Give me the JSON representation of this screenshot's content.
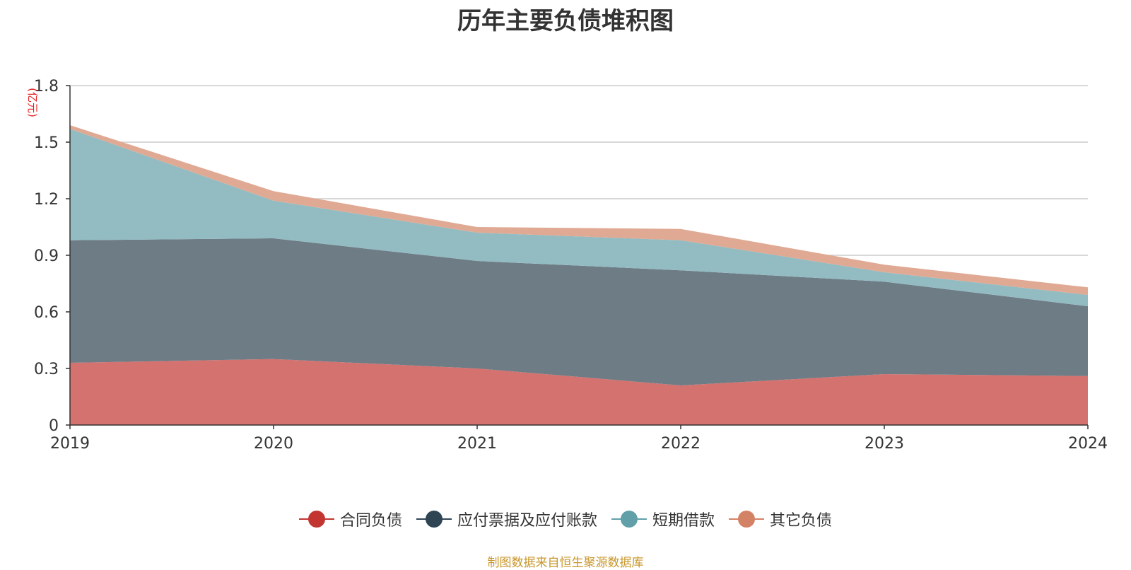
{
  "chart_data": {
    "type": "area",
    "stacked": true,
    "title": "历年主要负债堆积图",
    "unit": "(亿元)",
    "x": [
      "2019",
      "2020",
      "2021",
      "2022",
      "2023",
      "2024"
    ],
    "ylim": [
      0,
      1.8
    ],
    "yticks": [
      "0",
      "0.3",
      "0.6",
      "0.9",
      "1.2",
      "1.5",
      "1.8"
    ],
    "grid": true,
    "legend_position": "bottom",
    "series": [
      {
        "name": "合同负债",
        "color": "#c23531",
        "fill": "#d4726f",
        "values": [
          0.33,
          0.35,
          0.3,
          0.21,
          0.27,
          0.26
        ]
      },
      {
        "name": "应付票据及应付账款",
        "color": "#2f4554",
        "fill": "#6e7c86",
        "values": [
          0.65,
          0.64,
          0.57,
          0.61,
          0.49,
          0.37
        ]
      },
      {
        "name": "短期借款",
        "color": "#61a0a8",
        "fill": "#93bcc2",
        "values": [
          0.59,
          0.2,
          0.15,
          0.16,
          0.05,
          0.06
        ]
      },
      {
        "name": "其它负债",
        "color": "#d48265",
        "fill": "#e0a993",
        "values": [
          0.02,
          0.05,
          0.03,
          0.06,
          0.04,
          0.04
        ]
      }
    ],
    "source": "制图数据来自恒生聚源数据库",
    "unit_color": "#e52020",
    "source_color": "#c8962a"
  }
}
